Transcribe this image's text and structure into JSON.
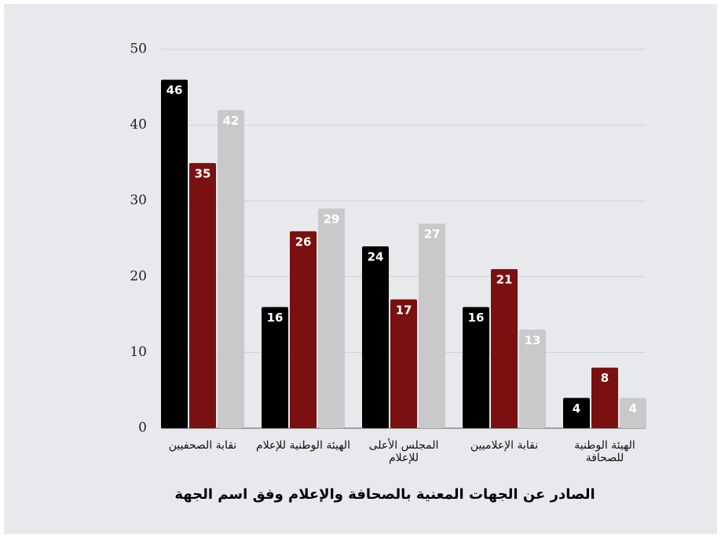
{
  "chart_data": {
    "type": "bar",
    "title": "الصادر عن الجهات المعنية بالصحافة والإعلام وفق اسم الجهة",
    "categories": [
      "نقابة الصحفيين",
      "الهيئة الوطنية للإعلام",
      "المجلس الأعلى للإعلام",
      "نقابة الإعلاميين",
      "الهيئة الوطنية للصحافة"
    ],
    "series": [
      {
        "color": "#000000",
        "values": [
          46,
          16,
          24,
          16,
          4
        ]
      },
      {
        "color": "#7a1010",
        "values": [
          35,
          26,
          17,
          21,
          8
        ]
      },
      {
        "color": "#c9c9cc",
        "values": [
          42,
          29,
          27,
          13,
          4
        ]
      }
    ],
    "ylim": [
      0,
      50
    ],
    "yticks": [
      0,
      10,
      20,
      30,
      40,
      50
    ],
    "grid": true
  }
}
